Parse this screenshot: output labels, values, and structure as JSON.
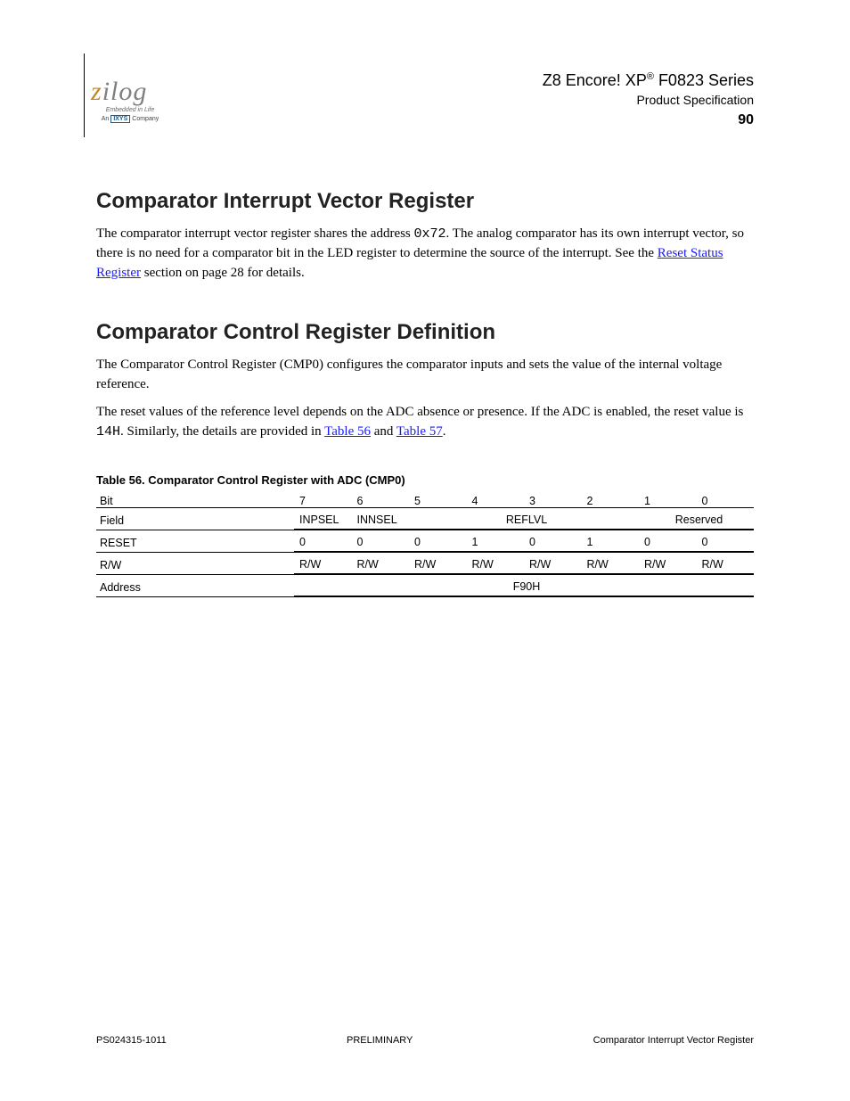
{
  "header": {
    "product": "Z8 Encore! XP",
    "subtitle_suffix": " F0823 Series",
    "manual": "Product Specification",
    "page": "90"
  },
  "logo": {
    "z": "z",
    "rest": "ilog",
    "sub1": "Embedded in Life",
    "sub2_pre": "An ",
    "sub2_box": "IXYS",
    "sub2_post": " Company"
  },
  "sections": {
    "reset_title": "Comparator Interrupt Vector Register",
    "reset_para_pre": "The comparator interrupt vector register shares the address ",
    "reset_code": "0x72",
    "reset_para_post": ". The analog comparator has its own interrupt vector, so there is no need for a comparator bit in the LED register to determine the source of the interrupt. See the ",
    "reset_link": "Reset Status Register",
    "reset_para_end": " section on page 28 for details.",
    "control_title": "Comparator Control Register Definition",
    "control_para_pre": "The Comparator Control Register (CMP0) configures the comparator inputs and sets the value of the internal voltage reference.",
    "mode_para_pre": "The reset values of the reference level depends on the ADC absence or presence. If the ADC is enabled, the reset value is ",
    "mode_code": "14H",
    "mode_para_post": ". Similarly, the details are provided in ",
    "mode_link_1": "Table 56",
    "mode_post_1": " and ",
    "mode_link_2": "Table 57",
    "mode_post_2": "."
  },
  "table": {
    "caption_prefix": "Table 56. ",
    "caption": "Comparator Control Register with ADC (CMP0)",
    "rows": {
      "bit": {
        "label": "Bit",
        "cells": [
          "7",
          "6",
          "5",
          "4",
          "3",
          "2",
          "1",
          "0"
        ]
      },
      "field": {
        "label": "Field",
        "cells_merge": [
          {
            "text": "INPSEL",
            "span": 1
          },
          {
            "text": "INNSEL",
            "span": 1
          },
          {
            "text": "REFLVL",
            "span": 4
          },
          {
            "text": "Reserved",
            "span": 2
          }
        ]
      },
      "reset": {
        "label": "RESET",
        "cells": [
          "0",
          "0",
          "0",
          "1",
          "0",
          "1",
          "0",
          "0"
        ]
      },
      "rw": {
        "label": "R/W",
        "cells": [
          "R/W",
          "R/W",
          "R/W",
          "R/W",
          "R/W",
          "R/W",
          "R/W",
          "R/W"
        ]
      },
      "address": {
        "label": "Address",
        "value": "F90H"
      }
    }
  },
  "footer": {
    "left": "PS024315-1011",
    "center": "PRELIMINARY",
    "right": "Comparator Interrupt Vector Register"
  }
}
